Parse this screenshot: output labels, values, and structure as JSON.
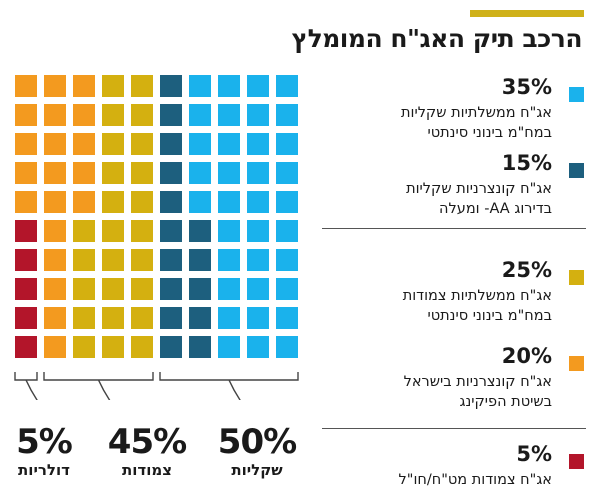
{
  "title": "הרכב תיק האג\"ח המומלץ",
  "colors": {
    "accent": "#cfb11a",
    "light_blue": "#1ab2ec",
    "dark_blue": "#1d5f7e",
    "gold": "#d4b010",
    "orange": "#f39a1f",
    "red": "#b3152a",
    "bracket": "#444444"
  },
  "legend": [
    {
      "pct": "35%",
      "line1": "אג\"ח ממשלתיות שקליות",
      "line2": "במח\"מ בינוני סינתטי",
      "color_key": "light_blue"
    },
    {
      "pct": "15%",
      "line1": "אג\"ח קונצרניות שקליות",
      "line2": "בדירוג AA- ומעלה",
      "color_key": "dark_blue"
    },
    {
      "pct": "25%",
      "line1": "אג\"ח ממשלתיות צמודות",
      "line2": "במח\"מ בינוני סינתטי",
      "color_key": "gold"
    },
    {
      "pct": "20%",
      "line1": "אג\"ח קונצרניות בישראל",
      "line2": "בשיטת הפיקינג",
      "color_key": "orange"
    },
    {
      "pct": "5%",
      "line1": "אג\"ח צמודות מט\"ח/חו\"ל",
      "line2": "",
      "color_key": "red"
    }
  ],
  "groups": [
    {
      "pct": "50%",
      "name": "שקליות"
    },
    {
      "pct": "45%",
      "name": "צמודות"
    },
    {
      "pct": "5%",
      "name": "דולריות"
    }
  ],
  "chart_data": {
    "type": "waffle",
    "grid": {
      "rows": 10,
      "columns": 10
    },
    "series": [
      {
        "name": "אג\"ח ממשלתיות שקליות במח\"מ בינוני סינתטי",
        "value": 35,
        "color_key": "light_blue"
      },
      {
        "name": "אג\"ח קונצרניות שקליות בדירוג AA- ומעלה",
        "value": 15,
        "color_key": "dark_blue"
      },
      {
        "name": "אג\"ח ממשלתיות צמודות במח\"מ בינוני סינתטי",
        "value": 25,
        "color_key": "gold"
      },
      {
        "name": "אג\"ח קונצרניות בישראל בשיטת הפיקינג",
        "value": 20,
        "color_key": "orange"
      },
      {
        "name": "אג\"ח צמודות מט\"ח/חו\"ל",
        "value": 5,
        "color_key": "red"
      }
    ],
    "column_layout": [
      [
        "light_blue",
        "light_blue",
        "light_blue",
        "light_blue",
        "light_blue",
        "light_blue",
        "light_blue",
        "light_blue",
        "light_blue",
        "light_blue"
      ],
      [
        "light_blue",
        "light_blue",
        "light_blue",
        "light_blue",
        "light_blue",
        "light_blue",
        "light_blue",
        "light_blue",
        "light_blue",
        "light_blue"
      ],
      [
        "light_blue",
        "light_blue",
        "light_blue",
        "light_blue",
        "light_blue",
        "light_blue",
        "light_blue",
        "light_blue",
        "light_blue",
        "light_blue"
      ],
      [
        "light_blue",
        "light_blue",
        "light_blue",
        "light_blue",
        "light_blue",
        "dark_blue",
        "dark_blue",
        "dark_blue",
        "dark_blue",
        "dark_blue"
      ],
      [
        "dark_blue",
        "dark_blue",
        "dark_blue",
        "dark_blue",
        "dark_blue",
        "dark_blue",
        "dark_blue",
        "dark_blue",
        "dark_blue",
        "dark_blue"
      ],
      [
        "gold",
        "gold",
        "gold",
        "gold",
        "gold",
        "gold",
        "gold",
        "gold",
        "gold",
        "gold"
      ],
      [
        "gold",
        "gold",
        "gold",
        "gold",
        "gold",
        "gold",
        "gold",
        "gold",
        "gold",
        "gold"
      ],
      [
        "orange",
        "orange",
        "orange",
        "orange",
        "orange",
        "gold",
        "gold",
        "gold",
        "gold",
        "gold"
      ],
      [
        "orange",
        "orange",
        "orange",
        "orange",
        "orange",
        "orange",
        "orange",
        "orange",
        "orange",
        "orange"
      ],
      [
        "orange",
        "orange",
        "orange",
        "orange",
        "orange",
        "red",
        "red",
        "red",
        "red",
        "red"
      ]
    ],
    "brackets": [
      {
        "label": "50%",
        "columns": [
          0,
          4
        ]
      },
      {
        "label": "45%",
        "columns": [
          5,
          8
        ]
      },
      {
        "label": "5%",
        "columns": [
          9,
          9
        ]
      }
    ]
  }
}
